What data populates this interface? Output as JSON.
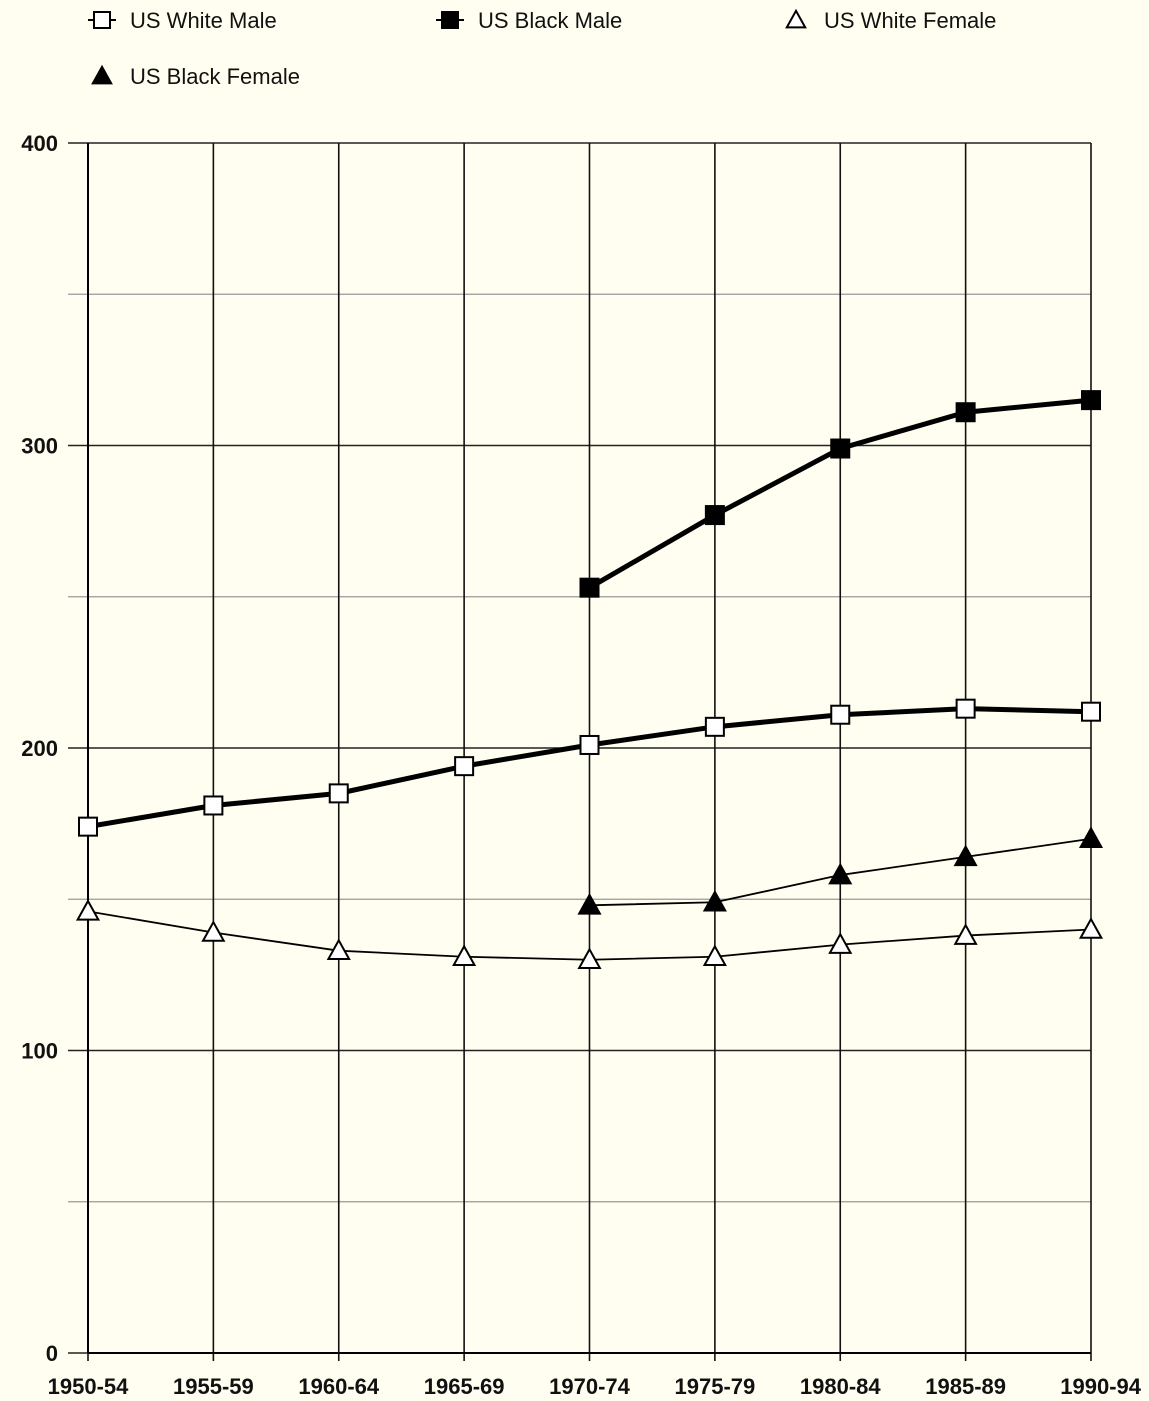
{
  "chart_data": {
    "type": "line",
    "categories": [
      "1950-54",
      "1955-59",
      "1960-64",
      "1965-69",
      "1970-74",
      "1975-79",
      "1980-84",
      "1985-89",
      "1990-94"
    ],
    "ylim": [
      0,
      400
    ],
    "yticks": [
      "0",
      "100",
      "200",
      "300",
      "400"
    ],
    "grid": true,
    "legend_placement": "top",
    "series": [
      {
        "name": "US White Male",
        "marker": "square-open",
        "line": "thick",
        "color": "#000000",
        "values": [
          174,
          181,
          185,
          194,
          201,
          207,
          211,
          213,
          212
        ]
      },
      {
        "name": "US Black Male",
        "marker": "square-filled",
        "line": "thick",
        "color": "#000000",
        "values": [
          null,
          null,
          null,
          null,
          253,
          277,
          299,
          311,
          315
        ]
      },
      {
        "name": "US White Female",
        "marker": "triangle-open",
        "line": "thin",
        "color": "#000000",
        "values": [
          146,
          139,
          133,
          131,
          130,
          131,
          135,
          138,
          140
        ]
      },
      {
        "name": "US Black Female",
        "marker": "triangle-filled",
        "line": "thin",
        "color": "#000000",
        "values": [
          null,
          null,
          null,
          null,
          148,
          149,
          158,
          164,
          170
        ]
      }
    ]
  }
}
